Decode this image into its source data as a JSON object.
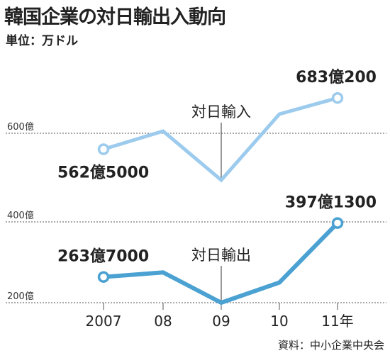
{
  "title": "韓国企業の対日輸出入動向",
  "unit_label": "単位：万ドル",
  "source_label": "資料：中小企業中央会",
  "colors": {
    "import": "#9ccbee",
    "export": "#4aa1d2",
    "grid": "#555555"
  },
  "chart_data": {
    "type": "line",
    "title": "韓国企業の対日輸出入動向",
    "ylabel": "単位：万ドル",
    "categories": [
      "2007",
      "08",
      "09",
      "10",
      "11年"
    ],
    "yticks": [
      {
        "value": 600,
        "label": "600億"
      },
      {
        "value": 400,
        "label": "400億"
      },
      {
        "value": 200,
        "label": "200億"
      }
    ],
    "ylim": [
      200,
      690
    ],
    "grid": "horizontal-dashed",
    "series": [
      {
        "name": "対日輸入",
        "values": [
          562.5,
          605,
          490,
          645,
          683.02
        ],
        "labels": {
          "0": "562億5000",
          "4": "683億200"
        },
        "color": "#9ccbee"
      },
      {
        "name": "対日輸出",
        "values": [
          263.7,
          275,
          200,
          250,
          397.13
        ],
        "labels": {
          "0": "263億7000",
          "4": "397億1300"
        },
        "color": "#4aa1d2"
      }
    ]
  }
}
